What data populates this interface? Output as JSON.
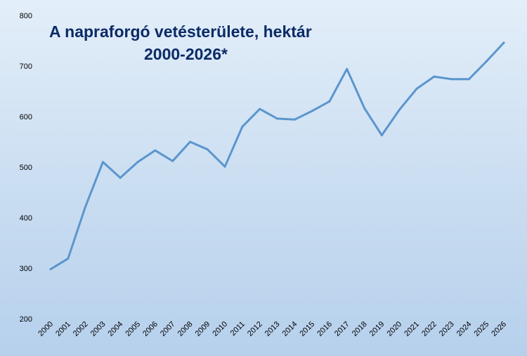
{
  "chart_data": {
    "type": "line",
    "title_line1": "A napraforgó vetésterülete, hektár",
    "title_line2": "2000-2026*",
    "xlabel": "",
    "ylabel": "",
    "ylim": [
      200,
      800
    ],
    "yticks": [
      "200",
      "300",
      "400",
      "500",
      "600",
      "700",
      "800"
    ],
    "grid": false,
    "line_color": "#5b95cd",
    "title_color": "#0b2b66",
    "categories": [
      "2000",
      "2001",
      "2002",
      "2003",
      "2004",
      "2005",
      "2006",
      "2007",
      "2008",
      "2009",
      "2010",
      "2011",
      "2012",
      "2013",
      "2014",
      "2015",
      "2016",
      "2017",
      "2018",
      "2019",
      "2020",
      "2021",
      "2022",
      "2023",
      "2024",
      "2025",
      "2026"
    ],
    "series": [
      {
        "values": [
          298,
          319,
          422,
          510,
          479,
          510,
          533,
          512,
          550,
          535,
          501,
          580,
          615,
          596,
          594,
          611,
          630,
          694,
          617,
          563,
          613,
          655,
          679,
          674,
          674,
          709,
          746
        ]
      }
    ]
  }
}
